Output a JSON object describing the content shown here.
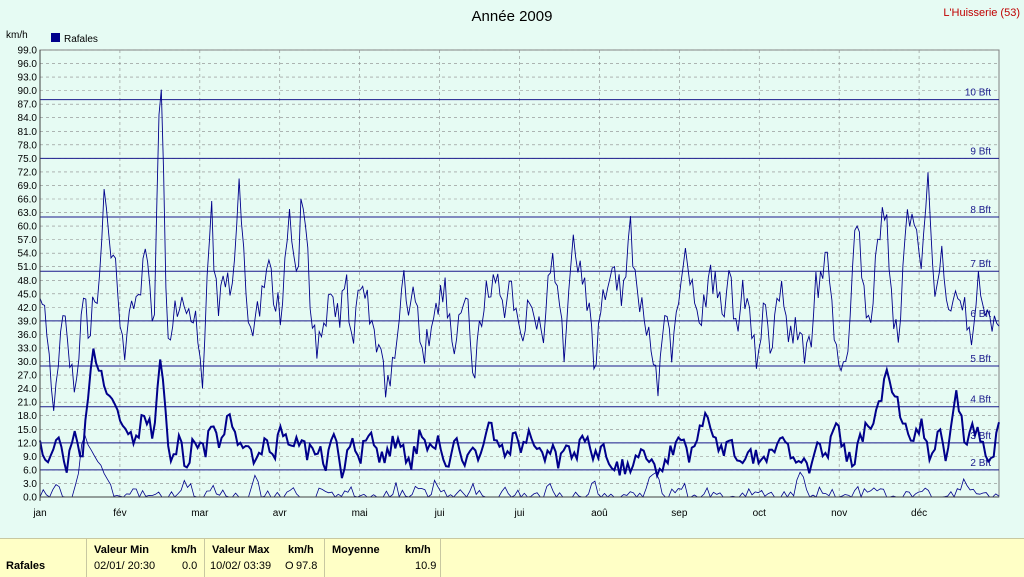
{
  "chart_data": {
    "type": "line",
    "title": "Année 2009",
    "station": "L'Huisserie (53)",
    "ylabel": "km/h",
    "ylim": [
      0,
      99
    ],
    "yticks": [
      "0.0",
      "3.0",
      "6.0",
      "9.0",
      "12.0",
      "15.0",
      "18.0",
      "21.0",
      "24.0",
      "27.0",
      "30.0",
      "33.0",
      "36.0",
      "39.0",
      "42.0",
      "45.0",
      "48.0",
      "51.0",
      "54.0",
      "57.0",
      "60.0",
      "63.0",
      "66.0",
      "69.0",
      "72.0",
      "75.0",
      "78.0",
      "81.0",
      "84.0",
      "87.0",
      "90.0",
      "93.0",
      "96.0",
      "99.0"
    ],
    "months": [
      "jan",
      "fév",
      "mar",
      "avr",
      "mai",
      "jui",
      "jui",
      "aoû",
      "sep",
      "oct",
      "nov",
      "déc"
    ],
    "beaufort": [
      {
        "label": "2 Bft",
        "value": 6
      },
      {
        "label": "3 Bft",
        "value": 12
      },
      {
        "label": "4 Bft",
        "value": 20
      },
      {
        "label": "5 Bft",
        "value": 29
      },
      {
        "label": "6 Bft",
        "value": 39
      },
      {
        "label": "7 Bft",
        "value": 50
      },
      {
        "label": "8 Bft",
        "value": 62
      },
      {
        "label": "9 Bft",
        "value": 75
      },
      {
        "label": "10 Bft",
        "value": 88
      }
    ],
    "series": [
      {
        "name": "Rafales",
        "color": "#00008b",
        "max_profile": [
          44,
          38,
          15,
          40,
          35,
          24,
          45,
          38,
          42,
          68,
          55,
          44,
          31,
          44,
          40,
          58,
          35,
          98,
          32,
          42,
          44,
          38,
          40,
          26,
          65,
          40,
          52,
          44,
          69,
          42,
          36,
          40,
          52,
          44,
          41,
          62,
          46,
          70,
          44,
          35,
          36,
          48,
          40,
          52,
          33,
          46,
          42,
          36,
          29,
          25,
          30,
          48,
          40,
          45,
          28,
          38,
          42,
          44,
          34,
          40,
          46,
          26,
          38,
          44,
          52,
          42,
          48,
          40,
          32,
          44,
          40,
          36,
          56,
          44,
          32,
          58,
          52,
          46,
          30,
          44,
          48,
          50,
          40,
          62,
          44,
          38,
          36,
          24,
          40,
          32,
          46,
          54,
          44,
          38,
          48,
          46,
          40,
          52,
          36,
          44,
          42,
          30,
          44,
          32,
          48,
          40,
          38,
          36,
          30,
          44,
          48,
          52,
          36,
          24,
          40,
          63,
          44,
          38,
          56,
          66,
          40,
          34,
          64,
          60,
          52,
          73,
          40,
          56,
          38,
          44,
          46,
          32,
          48,
          40,
          36,
          42
        ],
        "mean_profile": [
          12,
          8,
          15,
          6,
          14,
          10,
          33,
          28,
          22,
          18,
          14,
          12,
          20,
          13,
          30,
          8,
          13,
          5,
          14,
          9,
          16,
          12,
          19,
          11,
          13,
          6,
          13,
          8,
          16,
          12,
          13,
          9,
          11,
          7,
          14,
          5,
          13,
          8,
          16,
          10,
          9,
          13,
          11,
          8,
          14,
          10,
          12,
          7,
          13,
          9,
          10,
          8,
          17,
          11,
          9,
          13,
          10,
          14,
          8,
          12,
          7,
          12,
          10,
          13,
          8,
          11,
          7,
          7,
          7,
          7,
          10,
          6,
          8,
          11,
          13,
          9,
          13,
          18,
          12,
          9,
          12,
          8,
          10,
          9,
          8,
          12,
          14,
          10,
          8,
          6,
          13,
          9,
          17,
          10,
          8,
          12,
          16,
          19,
          28,
          21,
          16,
          12,
          17,
          10,
          14,
          9,
          22,
          13,
          16,
          12,
          8,
          15
        ],
        "min_profile": [
          0,
          0,
          2,
          0,
          0,
          14,
          10,
          6,
          2,
          0,
          0,
          3,
          0,
          2,
          0,
          0,
          0,
          3,
          0,
          0,
          2,
          0,
          0,
          0,
          0,
          4,
          0,
          0,
          0,
          2,
          0,
          0,
          0,
          3,
          0,
          0,
          2,
          0,
          0,
          0,
          0,
          2,
          0,
          0,
          1,
          0,
          3,
          0,
          0,
          0,
          2,
          0,
          0,
          0,
          1,
          0,
          0,
          0,
          0,
          2,
          0,
          0,
          0,
          0,
          4,
          0,
          0,
          0,
          2,
          0,
          0,
          6,
          0,
          0,
          3,
          0,
          0,
          2,
          0,
          0,
          0,
          0,
          0,
          2,
          0,
          0,
          0,
          0,
          6,
          0,
          0,
          2,
          0,
          0,
          1,
          0,
          0,
          3,
          0,
          0,
          0,
          0,
          2,
          0,
          0,
          0,
          0,
          4,
          0,
          0,
          0,
          1
        ]
      }
    ],
    "legend": "top-left",
    "grid": true
  },
  "footer": {
    "row_label": "Rafales",
    "min_header": "Valeur Min",
    "min_unit": "km/h",
    "min_date": "02/01/  20:30",
    "min_value": "0.0",
    "max_header": "Valeur Max",
    "max_unit": "km/h",
    "max_date": "10/02/  03:39",
    "max_dir": "O",
    "max_value": "97.8",
    "avg_header": "Moyenne",
    "avg_unit": "km/h",
    "avg_value": "10.9"
  }
}
